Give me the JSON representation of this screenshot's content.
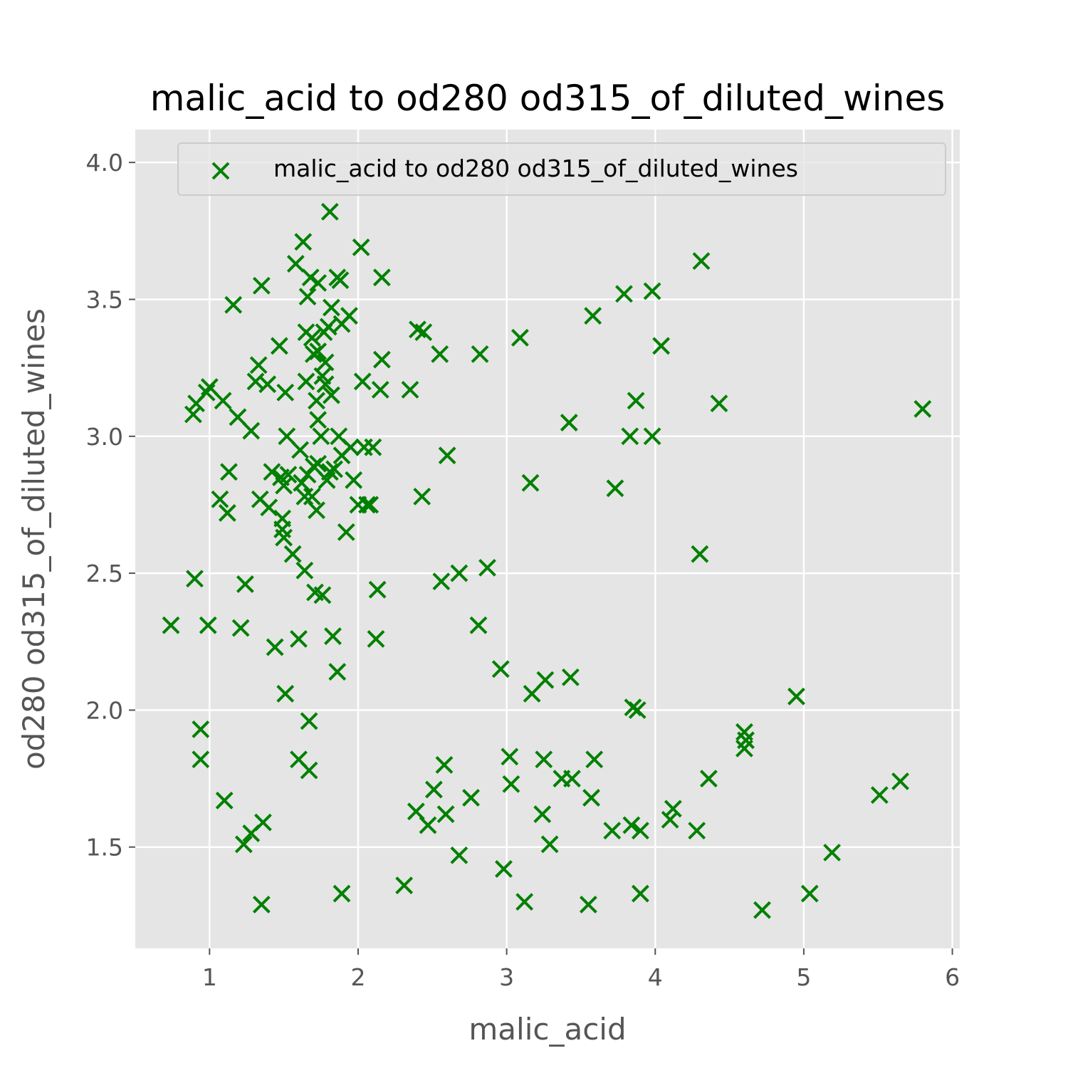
{
  "chart_data": {
    "type": "scatter",
    "title": "malic_acid to od280 od315_of_diluted_wines",
    "xlabel": "malic_acid",
    "ylabel": "od280 od315_of_diluted_wines",
    "xlim": [
      0.5,
      6.05
    ],
    "ylim": [
      1.13,
      4.12
    ],
    "xticks": [
      1,
      2,
      3,
      4,
      5,
      6
    ],
    "xtick_labels": [
      "1",
      "2",
      "3",
      "4",
      "5",
      "6"
    ],
    "yticks": [
      1.5,
      2.0,
      2.5,
      3.0,
      3.5,
      4.0
    ],
    "ytick_labels": [
      "1.5",
      "2.0",
      "2.5",
      "3.0",
      "3.5",
      "4.0"
    ],
    "grid": true,
    "legend_position": "top-right",
    "series": [
      {
        "name": "malic_acid to od280 od315_of_diluted_wines",
        "color": "#008000",
        "marker": "x",
        "points": [
          [
            0.74,
            2.31
          ],
          [
            0.89,
            3.08
          ],
          [
            0.9,
            2.48
          ],
          [
            0.91,
            3.12
          ],
          [
            0.94,
            1.93
          ],
          [
            0.94,
            1.82
          ],
          [
            0.98,
            3.16
          ],
          [
            1.0,
            3.18
          ],
          [
            0.99,
            2.31
          ],
          [
            1.07,
            2.77
          ],
          [
            1.09,
            3.13
          ],
          [
            1.1,
            1.67
          ],
          [
            1.12,
            2.72
          ],
          [
            1.13,
            2.87
          ],
          [
            1.16,
            3.48
          ],
          [
            1.19,
            3.07
          ],
          [
            1.21,
            2.3
          ],
          [
            1.23,
            1.51
          ],
          [
            1.24,
            2.46
          ],
          [
            1.28,
            3.02
          ],
          [
            1.28,
            1.55
          ],
          [
            1.31,
            3.2
          ],
          [
            1.33,
            3.26
          ],
          [
            1.34,
            2.77
          ],
          [
            1.35,
            3.55
          ],
          [
            1.35,
            1.29
          ],
          [
            1.36,
            1.59
          ],
          [
            1.39,
            3.19
          ],
          [
            1.4,
            2.74
          ],
          [
            1.42,
            2.87
          ],
          [
            1.44,
            2.23
          ],
          [
            1.47,
            3.33
          ],
          [
            1.48,
            2.85
          ],
          [
            1.49,
            2.7
          ],
          [
            1.49,
            2.66
          ],
          [
            1.5,
            2.63
          ],
          [
            1.5,
            2.82
          ],
          [
            1.51,
            3.16
          ],
          [
            1.51,
            2.06
          ],
          [
            1.52,
            3.0
          ],
          [
            1.53,
            2.86
          ],
          [
            1.56,
            2.57
          ],
          [
            1.58,
            3.63
          ],
          [
            1.6,
            2.26
          ],
          [
            1.6,
            1.82
          ],
          [
            1.61,
            2.95
          ],
          [
            1.62,
            2.83
          ],
          [
            1.63,
            3.71
          ],
          [
            1.64,
            2.51
          ],
          [
            1.64,
            2.78
          ],
          [
            1.65,
            3.38
          ],
          [
            1.65,
            3.2
          ],
          [
            1.66,
            3.51
          ],
          [
            1.66,
            2.86
          ],
          [
            1.67,
            1.78
          ],
          [
            1.67,
            1.96
          ],
          [
            1.68,
            3.58
          ],
          [
            1.69,
            3.36
          ],
          [
            1.69,
            2.78
          ],
          [
            1.7,
            3.3
          ],
          [
            1.7,
            2.89
          ],
          [
            1.71,
            2.43
          ],
          [
            1.72,
            3.13
          ],
          [
            1.72,
            2.73
          ],
          [
            1.73,
            3.56
          ],
          [
            1.73,
            3.31
          ],
          [
            1.73,
            3.06
          ],
          [
            1.73,
            2.9
          ],
          [
            1.75,
            3.0
          ],
          [
            1.76,
            3.22
          ],
          [
            1.76,
            2.42
          ],
          [
            1.77,
            3.38
          ],
          [
            1.78,
            3.27
          ],
          [
            1.78,
            3.19
          ],
          [
            1.79,
            2.84
          ],
          [
            1.8,
            3.4
          ],
          [
            1.81,
            3.82
          ],
          [
            1.81,
            2.87
          ],
          [
            1.82,
            3.47
          ],
          [
            1.82,
            3.15
          ],
          [
            1.83,
            2.27
          ],
          [
            1.84,
            2.88
          ],
          [
            1.86,
            3.58
          ],
          [
            1.86,
            2.14
          ],
          [
            1.87,
            3.0
          ],
          [
            1.88,
            3.57
          ],
          [
            1.89,
            3.41
          ],
          [
            1.89,
            2.93
          ],
          [
            1.89,
            1.33
          ],
          [
            1.92,
            2.65
          ],
          [
            1.94,
            3.44
          ],
          [
            1.95,
            2.96
          ],
          [
            1.97,
            2.84
          ],
          [
            2.0,
            2.75
          ],
          [
            2.02,
            3.69
          ],
          [
            2.03,
            3.2
          ],
          [
            2.04,
            2.96
          ],
          [
            2.06,
            2.75
          ],
          [
            2.08,
            2.75
          ],
          [
            2.1,
            2.96
          ],
          [
            2.12,
            2.26
          ],
          [
            2.13,
            2.44
          ],
          [
            2.15,
            3.17
          ],
          [
            2.16,
            3.58
          ],
          [
            2.16,
            3.28
          ],
          [
            2.31,
            1.36
          ],
          [
            2.35,
            3.17
          ],
          [
            2.39,
            1.63
          ],
          [
            2.4,
            3.39
          ],
          [
            2.43,
            2.78
          ],
          [
            2.44,
            3.38
          ],
          [
            2.47,
            1.58
          ],
          [
            2.51,
            1.71
          ],
          [
            2.55,
            3.3
          ],
          [
            2.56,
            2.47
          ],
          [
            2.58,
            1.8
          ],
          [
            2.59,
            1.62
          ],
          [
            2.6,
            2.93
          ],
          [
            2.68,
            2.5
          ],
          [
            2.68,
            1.47
          ],
          [
            2.76,
            1.68
          ],
          [
            2.81,
            2.31
          ],
          [
            2.82,
            3.3
          ],
          [
            2.87,
            2.52
          ],
          [
            2.96,
            2.15
          ],
          [
            2.98,
            1.42
          ],
          [
            3.02,
            1.83
          ],
          [
            3.03,
            1.73
          ],
          [
            3.09,
            3.36
          ],
          [
            3.12,
            1.3
          ],
          [
            3.16,
            2.83
          ],
          [
            3.17,
            2.06
          ],
          [
            3.24,
            1.62
          ],
          [
            3.25,
            1.82
          ],
          [
            3.26,
            2.11
          ],
          [
            3.29,
            1.51
          ],
          [
            3.37,
            1.75
          ],
          [
            3.42,
            3.05
          ],
          [
            3.43,
            2.12
          ],
          [
            3.44,
            1.75
          ],
          [
            3.55,
            1.29
          ],
          [
            3.57,
            1.68
          ],
          [
            3.58,
            3.44
          ],
          [
            3.59,
            1.82
          ],
          [
            3.73,
            2.81
          ],
          [
            3.71,
            1.56
          ],
          [
            3.79,
            3.52
          ],
          [
            3.83,
            3.0
          ],
          [
            3.84,
            1.58
          ],
          [
            3.85,
            2.01
          ],
          [
            3.87,
            3.13
          ],
          [
            3.88,
            2.0
          ],
          [
            3.9,
            1.56
          ],
          [
            3.9,
            1.33
          ],
          [
            3.98,
            3.53
          ],
          [
            3.98,
            3.0
          ],
          [
            4.04,
            3.33
          ],
          [
            4.1,
            1.6
          ],
          [
            4.12,
            1.64
          ],
          [
            4.28,
            1.56
          ],
          [
            4.3,
            2.57
          ],
          [
            4.31,
            3.64
          ],
          [
            4.36,
            1.75
          ],
          [
            4.43,
            3.12
          ],
          [
            4.6,
            1.92
          ],
          [
            4.61,
            1.89
          ],
          [
            4.6,
            1.86
          ],
          [
            4.72,
            1.27
          ],
          [
            4.95,
            2.05
          ],
          [
            5.04,
            1.33
          ],
          [
            5.19,
            1.48
          ],
          [
            5.51,
            1.69
          ],
          [
            5.65,
            1.74
          ],
          [
            5.8,
            3.1
          ]
        ]
      }
    ]
  }
}
